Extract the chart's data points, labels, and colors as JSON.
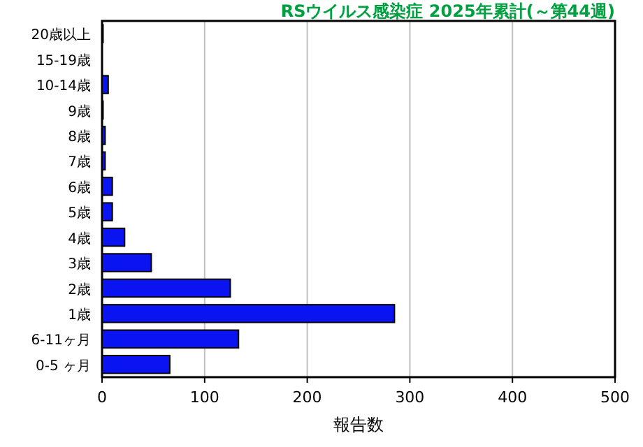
{
  "chart_data": {
    "type": "bar",
    "orientation": "horizontal",
    "title": "RSウイルス感染症 2025年累計(～第44週)",
    "xlabel": "報告数",
    "categories": [
      "20歳以上",
      "15-19歳",
      "10-14歳",
      "9歳",
      "8歳",
      "7歳",
      "6歳",
      "5歳",
      "4歳",
      "3歳",
      "2歳",
      "1歳",
      "6-11ヶ月",
      "0-5 ヶ月"
    ],
    "values": [
      1,
      0,
      6,
      1,
      3,
      3,
      10,
      10,
      22,
      48,
      125,
      285,
      133,
      66
    ],
    "color": "#0a14f0",
    "xlim": [
      0,
      500
    ],
    "xticks": [
      0,
      100,
      200,
      300,
      400,
      500
    ],
    "grid": "x"
  }
}
